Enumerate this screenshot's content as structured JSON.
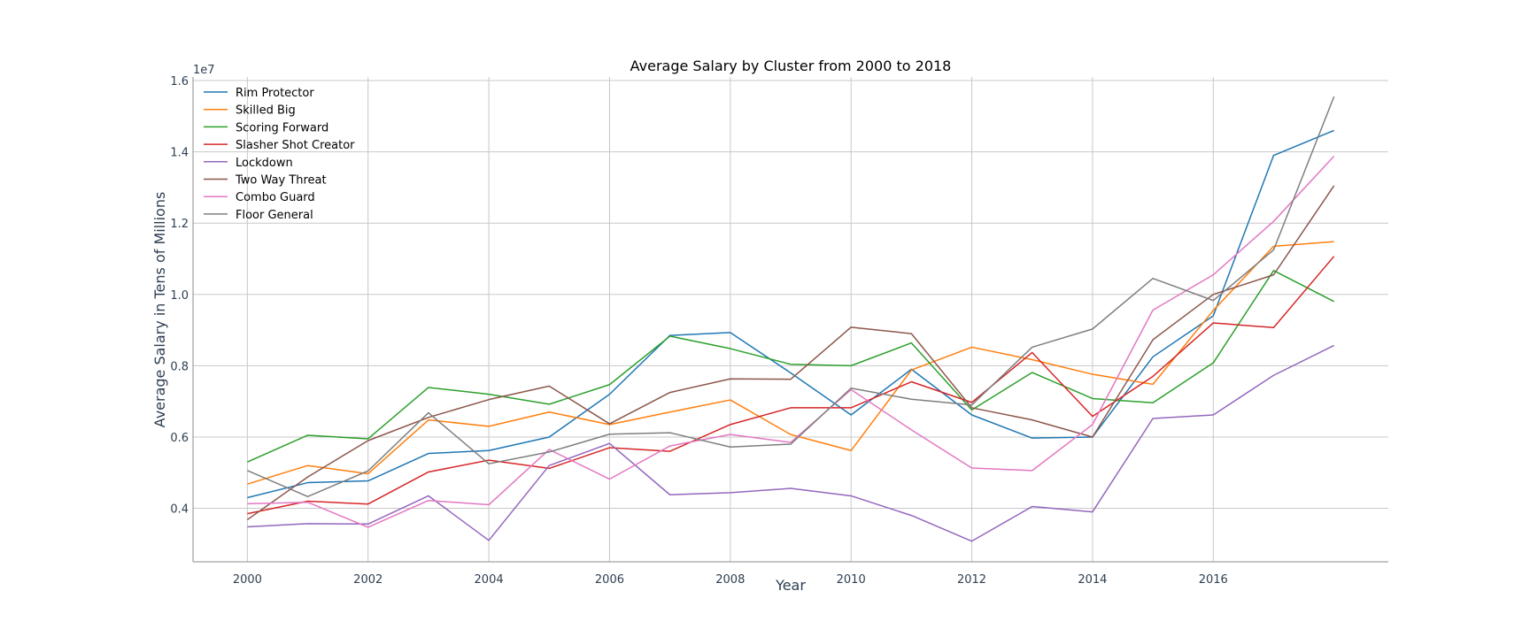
{
  "chart_data": {
    "type": "line",
    "title": "Average Salary by Cluster from 2000 to 2018",
    "xlabel": "Year",
    "ylabel": "Average Salary in Tens of Millions",
    "y_offset_label": "1e7",
    "xlim": [
      1999.1,
      2018.9
    ],
    "ylim": [
      2.5,
      16.1
    ],
    "x_ticks": [
      2000,
      2002,
      2004,
      2006,
      2008,
      2010,
      2012,
      2014,
      2016
    ],
    "x_tick_labels": [
      "2000",
      "2002",
      "2004",
      "2006",
      "2008",
      "2010",
      "2012",
      "2014",
      "2016"
    ],
    "y_ticks": [
      4,
      6,
      8,
      10,
      12,
      14,
      16
    ],
    "y_tick_labels": [
      "0.4",
      "0.6",
      "0.8",
      "1.0",
      "1.2",
      "1.4",
      "1.6"
    ],
    "grid": true,
    "legend_position": "top-left",
    "x": [
      2000,
      2001,
      2002,
      2003,
      2004,
      2005,
      2006,
      2007,
      2008,
      2009,
      2010,
      2011,
      2012,
      2013,
      2014,
      2015,
      2016,
      2017,
      2018
    ],
    "series": [
      {
        "name": "Rim Protector",
        "color": "#1f77b4",
        "values": [
          4.3,
          4.72,
          4.77,
          5.54,
          5.62,
          6.0,
          7.2,
          8.85,
          8.93,
          7.8,
          6.62,
          7.9,
          6.62,
          5.97,
          6.0,
          8.25,
          9.4,
          13.9,
          14.6
        ]
      },
      {
        "name": "Skilled Big",
        "color": "#ff7f0e",
        "values": [
          4.68,
          5.2,
          4.97,
          6.48,
          6.3,
          6.7,
          6.35,
          6.7,
          7.04,
          6.07,
          5.62,
          7.88,
          8.52,
          8.17,
          7.76,
          7.48,
          9.55,
          11.35,
          11.48
        ]
      },
      {
        "name": "Scoring Forward",
        "color": "#2ca02c",
        "values": [
          5.3,
          6.05,
          5.95,
          7.39,
          7.2,
          6.92,
          7.47,
          8.83,
          8.48,
          8.04,
          8.0,
          8.64,
          6.76,
          7.81,
          7.08,
          6.96,
          8.08,
          10.67,
          9.8
        ]
      },
      {
        "name": "Slasher Shot Creator",
        "color": "#d62728",
        "values": [
          3.85,
          4.2,
          4.12,
          5.02,
          5.35,
          5.12,
          5.7,
          5.6,
          6.35,
          6.82,
          6.82,
          7.55,
          6.97,
          8.37,
          6.58,
          7.7,
          9.2,
          9.07,
          11.07
        ]
      },
      {
        "name": "Lockdown",
        "color": "#9467bd",
        "values": [
          3.48,
          3.57,
          3.56,
          4.35,
          3.1,
          5.2,
          5.82,
          4.38,
          4.44,
          4.56,
          4.35,
          3.8,
          3.08,
          4.05,
          3.9,
          6.52,
          6.62,
          7.73,
          8.57
        ]
      },
      {
        "name": "Two Way Threat",
        "color": "#8c564b",
        "values": [
          3.68,
          4.88,
          5.9,
          6.55,
          7.05,
          7.43,
          6.37,
          7.25,
          7.63,
          7.62,
          9.08,
          8.9,
          6.82,
          6.48,
          6.0,
          8.73,
          10.0,
          10.55,
          13.05
        ]
      },
      {
        "name": "Combo Guard",
        "color": "#e377c2",
        "values": [
          4.13,
          4.17,
          3.47,
          4.22,
          4.1,
          5.65,
          4.82,
          5.75,
          6.07,
          5.85,
          7.33,
          6.2,
          5.13,
          5.06,
          6.35,
          9.56,
          10.55,
          12.05,
          13.88
        ]
      },
      {
        "name": "Floor General",
        "color": "#7f7f7f",
        "values": [
          5.06,
          4.33,
          5.05,
          6.68,
          5.25,
          5.58,
          6.08,
          6.12,
          5.72,
          5.8,
          7.37,
          7.06,
          6.9,
          8.52,
          9.03,
          10.45,
          9.83,
          11.25,
          15.55
        ]
      }
    ]
  }
}
